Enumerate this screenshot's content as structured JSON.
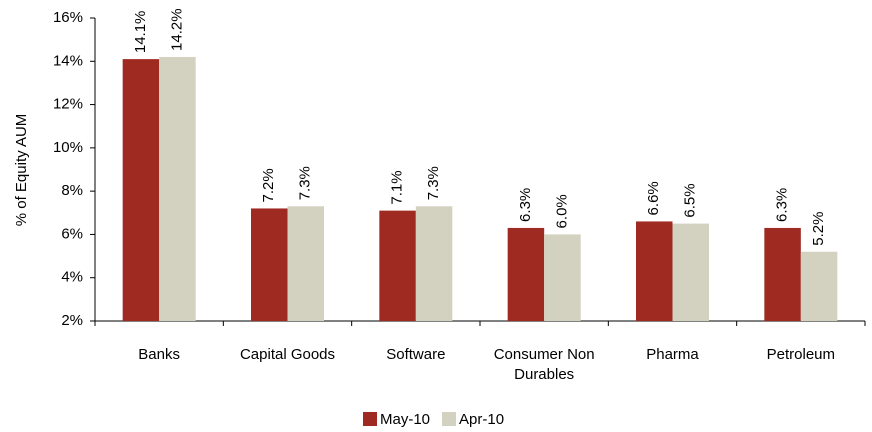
{
  "chart_data": {
    "type": "bar",
    "y_label": "% of Equity AUM",
    "categories": [
      "Banks",
      "Capital Goods",
      "Software",
      "Consumer Non Durables",
      "Pharma",
      "Petroleum"
    ],
    "series": [
      {
        "name": "May-10",
        "color": "#9e2a22",
        "values": [
          14.1,
          7.2,
          7.1,
          6.3,
          6.6,
          6.3
        ],
        "value_labels": [
          "14.1%",
          "7.2%",
          "7.1%",
          "6.3%",
          "6.6%",
          "6.3%"
        ]
      },
      {
        "name": "Apr-10",
        "color": "#d3d1bf",
        "values": [
          14.2,
          7.3,
          7.3,
          6.0,
          6.5,
          5.2
        ],
        "value_labels": [
          "14.2%",
          "7.3%",
          "7.3%",
          "6.0%",
          "6.5%",
          "5.2%"
        ]
      }
    ],
    "ylim": [
      2,
      16
    ],
    "yticks": [
      {
        "value": 2,
        "label": "2%"
      },
      {
        "value": 4,
        "label": "4%"
      },
      {
        "value": 6,
        "label": "6%"
      },
      {
        "value": 8,
        "label": "8%"
      },
      {
        "value": 10,
        "label": "10%"
      },
      {
        "value": 12,
        "label": "12%"
      },
      {
        "value": 14,
        "label": "14%"
      },
      {
        "value": 16,
        "label": "16%"
      }
    ],
    "grid": false,
    "legend": "bottom"
  }
}
